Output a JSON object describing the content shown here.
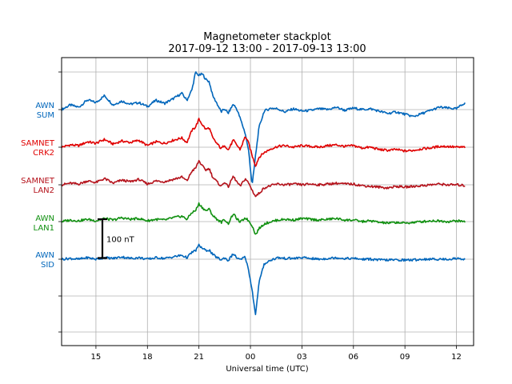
{
  "chart_data": {
    "type": "line",
    "title": "Magnetometer stackplot",
    "subtitle": "2017-09-12 13:00 - 2017-09-13 13:00",
    "xlabel": "Universal time (UTC)",
    "ylabel": "",
    "x_ticks": [
      "15",
      "18",
      "21",
      "00",
      "03",
      "06",
      "09",
      "12"
    ],
    "x_tick_hours": [
      15,
      18,
      21,
      24,
      27,
      30,
      33,
      36
    ],
    "xlim_hours": [
      13,
      37
    ],
    "grid": true,
    "scale_bar": {
      "label": "100 nT",
      "value_nT": 100
    },
    "series": [
      {
        "name": "AWN SUM",
        "label_lines": [
          "AWN",
          "SUM"
        ],
        "color": "#0066bb",
        "x_hours": [
          13.0,
          13.5,
          14.0,
          14.5,
          15.0,
          15.5,
          16.0,
          16.5,
          17.0,
          17.5,
          18.0,
          18.5,
          19.0,
          19.5,
          20.0,
          20.3,
          20.6,
          20.8,
          21.0,
          21.2,
          21.4,
          21.6,
          21.8,
          22.0,
          22.3,
          22.5,
          22.7,
          23.0,
          23.2,
          23.4,
          23.7,
          23.9,
          24.1,
          24.3,
          24.5,
          24.8,
          25.2,
          25.6,
          26.0,
          26.5,
          27.0,
          27.5,
          28.0,
          28.5,
          29.0,
          29.5,
          30.0,
          30.5,
          31.0,
          31.5,
          32.0,
          32.5,
          33.0,
          33.5,
          34.0,
          34.5,
          35.0,
          35.5,
          36.0,
          36.5
        ],
        "values": [
          0,
          12,
          6,
          25,
          18,
          36,
          12,
          22,
          14,
          18,
          8,
          24,
          16,
          28,
          42,
          24,
          52,
          96,
          88,
          92,
          78,
          72,
          36,
          20,
          -6,
          2,
          -10,
          14,
          2,
          -22,
          -62,
          -108,
          -196,
          -118,
          -46,
          -4,
          4,
          2,
          -6,
          2,
          -4,
          -2,
          2,
          0,
          6,
          -2,
          4,
          0,
          2,
          -4,
          -10,
          -6,
          -12,
          -18,
          -10,
          -2,
          6,
          4,
          2,
          18
        ]
      },
      {
        "name": "SAMNET CRK2",
        "label_lines": [
          "SAMNET",
          "CRK2"
        ],
        "color": "#e00000",
        "x_hours": [
          13.0,
          13.5,
          14.0,
          14.5,
          15.0,
          15.5,
          16.0,
          16.5,
          17.0,
          17.5,
          18.0,
          18.5,
          19.0,
          19.5,
          20.0,
          20.3,
          20.6,
          20.8,
          21.0,
          21.2,
          21.4,
          21.6,
          21.8,
          22.0,
          22.3,
          22.5,
          22.7,
          23.0,
          23.2,
          23.4,
          23.7,
          23.9,
          24.1,
          24.3,
          24.5,
          24.8,
          25.2,
          25.6,
          26.0,
          26.5,
          27.0,
          27.5,
          28.0,
          28.5,
          29.0,
          29.5,
          30.0,
          30.5,
          31.0,
          31.5,
          32.0,
          32.5,
          33.0,
          33.5,
          34.0,
          34.5,
          35.0,
          35.5,
          36.0,
          36.5
        ],
        "values": [
          0,
          6,
          4,
          14,
          10,
          20,
          8,
          16,
          12,
          18,
          4,
          14,
          10,
          18,
          24,
          12,
          44,
          52,
          72,
          58,
          46,
          50,
          24,
          12,
          -4,
          6,
          -8,
          18,
          6,
          -6,
          28,
          10,
          -22,
          -48,
          -26,
          -14,
          -4,
          2,
          4,
          0,
          4,
          2,
          0,
          4,
          6,
          2,
          4,
          -2,
          0,
          -6,
          -8,
          -6,
          -10,
          -8,
          -4,
          -2,
          2,
          2,
          0,
          0
        ]
      },
      {
        "name": "SAMNET LAN2",
        "label_lines": [
          "SAMNET",
          "LAN2"
        ],
        "color": "#b5121b",
        "x_hours": [
          13.0,
          13.5,
          14.0,
          14.5,
          15.0,
          15.5,
          16.0,
          16.5,
          17.0,
          17.5,
          18.0,
          18.5,
          19.0,
          19.5,
          20.0,
          20.3,
          20.6,
          20.8,
          21.0,
          21.2,
          21.4,
          21.6,
          21.8,
          22.0,
          22.3,
          22.5,
          22.7,
          23.0,
          23.2,
          23.4,
          23.7,
          23.9,
          24.1,
          24.3,
          24.5,
          24.8,
          25.2,
          25.6,
          26.0,
          26.5,
          27.0,
          27.5,
          28.0,
          28.5,
          29.0,
          29.5,
          30.0,
          30.5,
          31.0,
          31.5,
          32.0,
          32.5,
          33.0,
          33.5,
          34.0,
          34.5,
          35.0,
          35.5,
          36.0,
          36.5
        ],
        "values": [
          0,
          4,
          2,
          10,
          6,
          16,
          4,
          12,
          8,
          14,
          2,
          10,
          8,
          14,
          20,
          10,
          36,
          42,
          62,
          48,
          38,
          42,
          20,
          10,
          -4,
          8,
          -6,
          22,
          8,
          -4,
          16,
          4,
          -14,
          -30,
          -22,
          -8,
          -2,
          2,
          0,
          2,
          0,
          2,
          0,
          2,
          4,
          2,
          2,
          -2,
          -4,
          -6,
          -8,
          -4,
          -6,
          -4,
          -2,
          0,
          2,
          0,
          0,
          -2
        ]
      },
      {
        "name": "AWN LAN1",
        "label_lines": [
          "AWN",
          "LAN1"
        ],
        "color": "#109010",
        "x_hours": [
          13.0,
          13.5,
          14.0,
          14.5,
          15.0,
          15.5,
          16.0,
          16.5,
          17.0,
          17.5,
          18.0,
          18.5,
          19.0,
          19.5,
          20.0,
          20.3,
          20.6,
          20.8,
          21.0,
          21.2,
          21.4,
          21.6,
          21.8,
          22.0,
          22.3,
          22.5,
          22.7,
          23.0,
          23.2,
          23.4,
          23.7,
          23.9,
          24.1,
          24.3,
          24.5,
          24.8,
          25.2,
          25.6,
          26.0,
          26.5,
          27.0,
          27.5,
          28.0,
          28.5,
          29.0,
          29.5,
          30.0,
          30.5,
          31.0,
          31.5,
          32.0,
          32.5,
          33.0,
          33.5,
          34.0,
          34.5,
          35.0,
          35.5,
          36.0,
          36.5
        ],
        "values": [
          0,
          4,
          2,
          6,
          2,
          8,
          4,
          10,
          6,
          8,
          2,
          6,
          4,
          10,
          14,
          6,
          24,
          28,
          46,
          36,
          28,
          32,
          16,
          8,
          -2,
          6,
          -6,
          20,
          8,
          -2,
          10,
          2,
          -10,
          -34,
          -18,
          -6,
          0,
          4,
          6,
          4,
          8,
          6,
          4,
          6,
          8,
          4,
          4,
          0,
          2,
          -2,
          -4,
          -2,
          -4,
          -2,
          0,
          2,
          2,
          0,
          2,
          0
        ]
      },
      {
        "name": "AWN SID",
        "label_lines": [
          "AWN",
          "SID"
        ],
        "color": "#0066bb",
        "x_hours": [
          13.0,
          13.5,
          14.0,
          14.5,
          15.0,
          15.5,
          16.0,
          16.5,
          17.0,
          17.5,
          18.0,
          18.5,
          19.0,
          19.5,
          20.0,
          20.3,
          20.6,
          20.8,
          21.0,
          21.2,
          21.4,
          21.6,
          21.8,
          22.0,
          22.3,
          22.5,
          22.7,
          23.0,
          23.2,
          23.4,
          23.7,
          23.9,
          24.1,
          24.3,
          24.5,
          24.8,
          25.2,
          25.6,
          26.0,
          26.5,
          27.0,
          27.5,
          28.0,
          28.5,
          29.0,
          29.5,
          30.0,
          30.5,
          31.0,
          31.5,
          32.0,
          32.5,
          33.0,
          33.5,
          34.0,
          34.5,
          35.0,
          35.5,
          36.0,
          36.5
        ],
        "values": [
          0,
          2,
          0,
          4,
          0,
          4,
          2,
          6,
          2,
          4,
          0,
          4,
          2,
          6,
          10,
          4,
          18,
          22,
          36,
          28,
          22,
          24,
          12,
          6,
          -2,
          4,
          -4,
          14,
          4,
          -2,
          6,
          -30,
          -80,
          -144,
          -60,
          -12,
          -2,
          4,
          2,
          2,
          4,
          2,
          0,
          2,
          4,
          2,
          2,
          0,
          0,
          -2,
          -2,
          -2,
          -2,
          -2,
          0,
          0,
          0,
          0,
          2,
          0
        ]
      }
    ]
  }
}
